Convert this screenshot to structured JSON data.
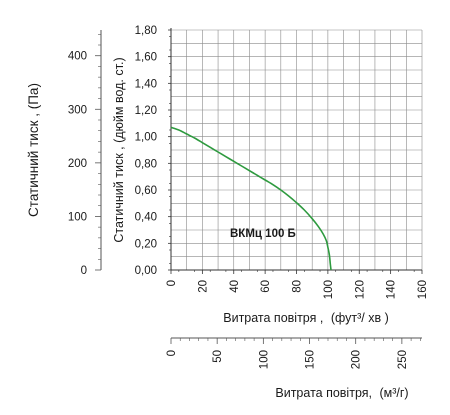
{
  "chart_data": {
    "type": "line",
    "series": [
      {
        "name": "ВКМц 100 Б",
        "x": [
          0,
          5,
          10,
          15,
          20,
          25,
          30,
          35,
          40,
          45,
          50,
          55,
          60,
          65,
          70,
          75,
          80,
          85,
          90,
          94,
          97,
          99,
          100,
          101,
          101.5,
          102
        ],
        "y": [
          1.07,
          1.05,
          1.02,
          0.99,
          0.955,
          0.92,
          0.885,
          0.85,
          0.815,
          0.78,
          0.745,
          0.71,
          0.675,
          0.64,
          0.6,
          0.555,
          0.505,
          0.45,
          0.385,
          0.325,
          0.27,
          0.22,
          0.17,
          0.11,
          0.05,
          0.0
        ],
        "color": "#2e9a3f"
      }
    ],
    "series_label": "ВКМц 100 Б",
    "x_axis_primary": {
      "label_main": "Витрата повітря ,",
      "label_unit": "(фут³/  хв )",
      "range": [
        0,
        160
      ],
      "ticks": [
        "0",
        "20",
        "40",
        "60",
        "80",
        "100",
        "120",
        "140",
        "160"
      ]
    },
    "x_axis_secondary": {
      "label_main": "Витрата повітря,",
      "label_unit": "(м³/г)",
      "range": [
        0,
        271.8
      ],
      "ticks": [
        "0",
        "50",
        "100",
        "150",
        "200",
        "250"
      ]
    },
    "y_axis_primary": {
      "label": "Статичний тиск , (дюйм вод. ст.)",
      "range": [
        0,
        1.8
      ],
      "ticks": [
        "0,00",
        "0,20",
        "0,40",
        "0,60",
        "0,80",
        "1,00",
        "1,20",
        "1,40",
        "1,60",
        "1,80"
      ]
    },
    "y_axis_secondary": {
      "label": "Статичний тиск , (Па)",
      "range": [
        0,
        448
      ],
      "ticks": [
        "0",
        "100",
        "200",
        "300",
        "400"
      ]
    },
    "grid": true
  }
}
